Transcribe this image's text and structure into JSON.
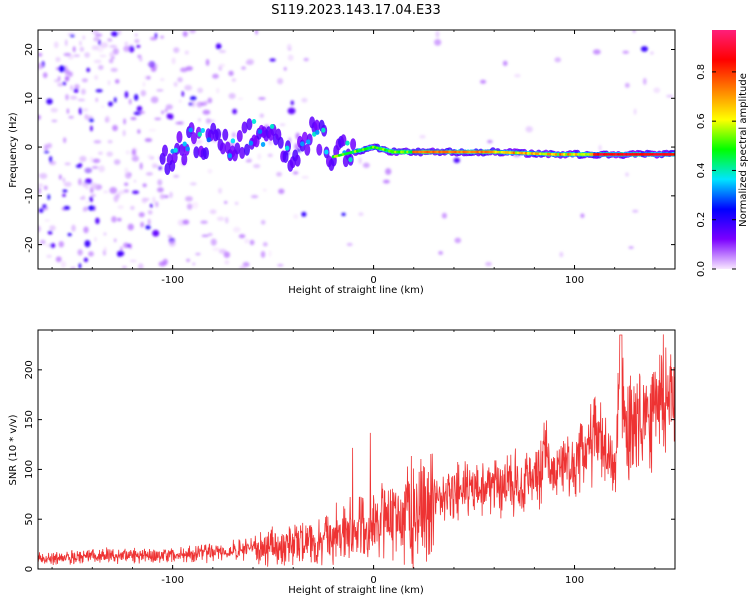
{
  "title": "S119.2023.143.17.04.E33",
  "chart_data": [
    {
      "type": "heatmap",
      "xlabel": "Height of straight line (km)",
      "ylabel": "Frequency (Hz)",
      "xlim": [
        -167,
        150
      ],
      "ylim": [
        -25,
        24
      ],
      "xticks": [
        -100,
        0,
        100
      ],
      "yticks": [
        -20,
        -10,
        0,
        10,
        20
      ],
      "colorbar": {
        "label": "Normalized spectral amplitude",
        "range": [
          0,
          0.97
        ],
        "ticks": [
          "0.0",
          "0.2",
          "0.4",
          "0.6",
          "0.8"
        ],
        "colormap": [
          "#f8e8ff",
          "#7b00ff",
          "#0000ff",
          "#00e5ff",
          "#00ff00",
          "#ffff00",
          "#ff8000",
          "#ff0000",
          "#ff1f7a"
        ]
      },
      "ridge": {
        "description_points": [
          {
            "x": -100,
            "y": -2
          },
          {
            "x": -90,
            "y": 2
          },
          {
            "x": -80,
            "y": 1
          },
          {
            "x": -70,
            "y": 0
          },
          {
            "x": -60,
            "y": 3
          },
          {
            "x": -50,
            "y": 2
          },
          {
            "x": -40,
            "y": -4
          },
          {
            "x": -30,
            "y": 4
          },
          {
            "x": -20,
            "y": -2
          },
          {
            "x": -10,
            "y": -1
          },
          {
            "x": 0,
            "y": 0
          },
          {
            "x": 10,
            "y": -1
          },
          {
            "x": 30,
            "y": -1
          },
          {
            "x": 60,
            "y": -1
          },
          {
            "x": 90,
            "y": -1.5
          },
          {
            "x": 120,
            "y": -1.5
          },
          {
            "x": 150,
            "y": -1.5
          }
        ]
      }
    },
    {
      "type": "line",
      "xlabel": "Height of straight line (km)",
      "ylabel": "SNR (10 * v/v)",
      "xlim": [
        -167,
        150
      ],
      "ylim": [
        0,
        240
      ],
      "xticks": [
        -100,
        0,
        100
      ],
      "yticks": [
        0,
        50,
        100,
        150,
        200
      ],
      "series": [
        {
          "color": "#ee3333",
          "x": [
            -167,
            -150,
            -130,
            -110,
            -90,
            -70,
            -60,
            -50,
            -40,
            -30,
            -20,
            -10,
            0,
            10,
            20,
            30,
            40,
            50,
            60,
            70,
            80,
            85,
            90,
            95,
            100,
            105,
            110,
            115,
            120,
            123,
            125,
            130,
            140,
            150
          ],
          "values": [
            10,
            12,
            14,
            13,
            15,
            18,
            20,
            22,
            25,
            28,
            30,
            38,
            45,
            52,
            60,
            68,
            75,
            80,
            85,
            88,
            90,
            108,
            100,
            95,
            100,
            112,
            138,
            115,
            95,
            205,
            135,
            140,
            165,
            185
          ]
        }
      ]
    }
  ]
}
